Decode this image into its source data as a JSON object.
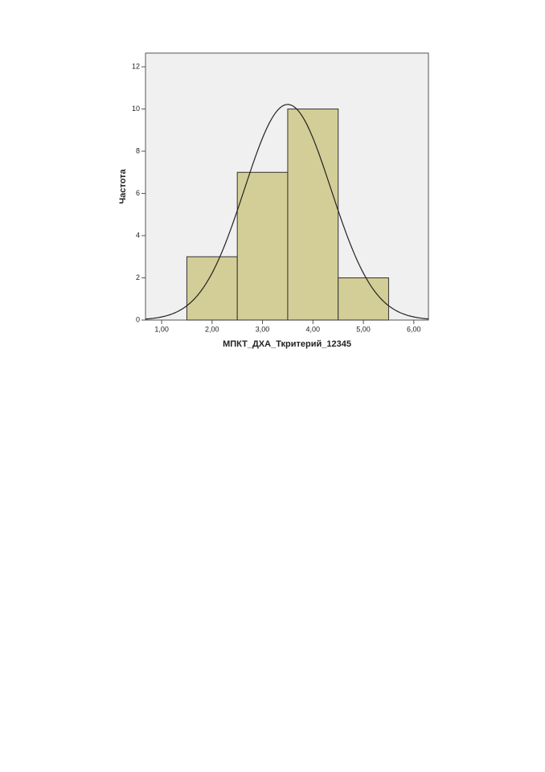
{
  "chart_data": {
    "type": "histogram",
    "x_label": "МПКТ_ДХА_Ткритерий_12345",
    "y_label": "Частота",
    "bins": [
      1.5,
      2.5,
      3.5,
      4.5,
      5.5
    ],
    "counts": [
      3,
      7,
      10,
      2
    ],
    "color": "#d3ce97",
    "normal_curve": true,
    "xlim": [
      0.68,
      6.29
    ],
    "xticks": [
      {
        "value": 1,
        "label": "1,00"
      },
      {
        "value": 2,
        "label": "2,00"
      },
      {
        "value": 3,
        "label": "3,00"
      },
      {
        "value": 4,
        "label": "4,00"
      },
      {
        "value": 5,
        "label": "5,00"
      },
      {
        "value": 6,
        "label": "6,00"
      }
    ],
    "ylim": [
      0,
      12.65
    ],
    "yticks": [
      0,
      2,
      4,
      6,
      8,
      10,
      12
    ]
  }
}
